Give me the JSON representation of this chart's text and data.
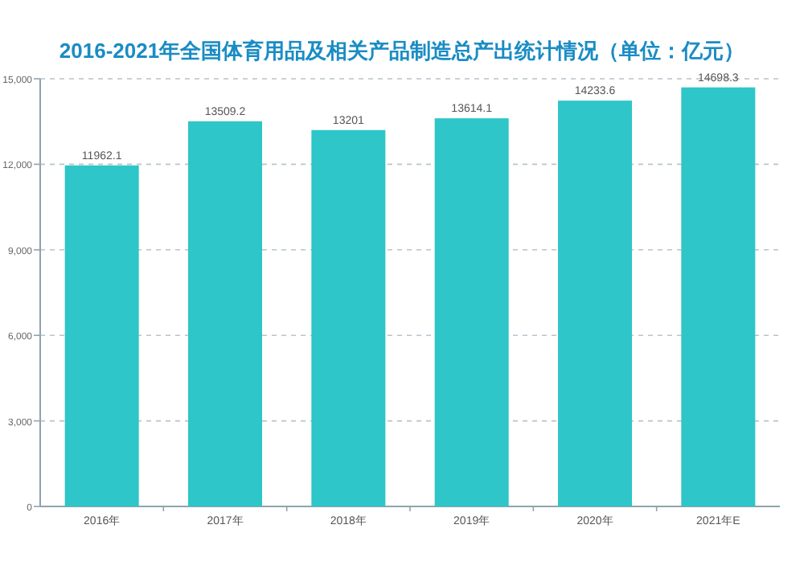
{
  "chart_data": {
    "type": "bar",
    "title": "2016-2021年全国体育用品及相关产品制造总产出统计情况（单位：亿元）",
    "categories": [
      "2016年",
      "2017年",
      "2018年",
      "2019年",
      "2020年",
      "2021年E"
    ],
    "values": [
      11962.1,
      13509.2,
      13201,
      13614.1,
      14233.6,
      14698.3
    ],
    "color": "#2ec6c8",
    "data_labels": true,
    "grid": "y",
    "ylim": [
      0,
      15000
    ],
    "yticks": [
      0,
      {
        "value": 3000,
        "label": "3,000"
      },
      {
        "value": 6000,
        "label": "6,000"
      },
      {
        "value": 9000,
        "label": "9,000"
      },
      {
        "value": 12000,
        "label": "12,000"
      },
      {
        "value": 15000,
        "label": "15,000"
      }
    ]
  }
}
